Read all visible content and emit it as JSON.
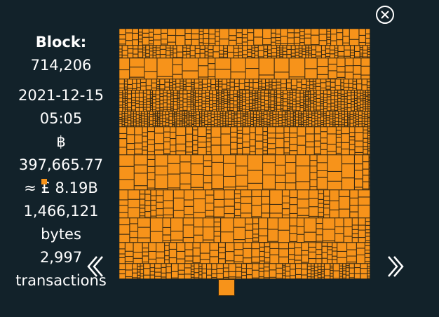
{
  "block": {
    "label": "Block:",
    "height": "714,206",
    "date": "2021-12-15",
    "time": "05:05",
    "currency_symbol": "฿",
    "btc_total": "397,665.77",
    "fiat_value": "≈ £ 8.19B",
    "size_bytes": "1,466,121",
    "size_unit": "bytes",
    "tx_count": "2,997",
    "tx_unit": "transactions"
  },
  "icons": {
    "close": "close-icon",
    "prev": "chevron-left-icon",
    "next": "chevron-right-icon"
  },
  "colors": {
    "background": "#12222a",
    "tx_fill": "#f7931a",
    "tx_stroke": "#3b2a12",
    "text": "#ffffff"
  }
}
